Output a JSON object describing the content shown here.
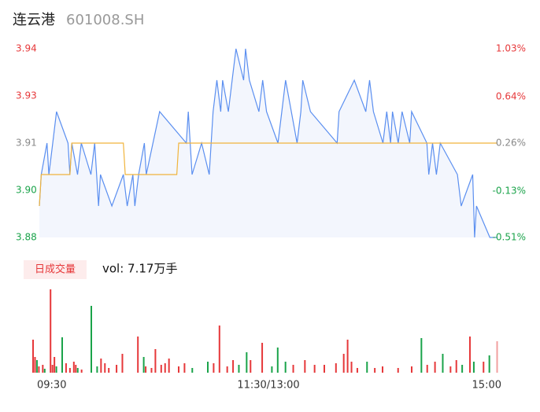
{
  "chart_data": [
    {
      "type": "line",
      "title": "连云港",
      "subtitle": "601008.SH",
      "xlim": [
        0,
        240
      ],
      "xticks": [
        {
          "value": 0,
          "label": "09:30"
        },
        {
          "value": 120,
          "label": "11:30/13:00"
        },
        {
          "value": 240,
          "label": "15:00"
        }
      ],
      "ylim": [
        3.88,
        3.94
      ],
      "yticks": [
        3.94,
        {
          "value": 3.925,
          "label": "3.93"
        },
        3.91,
        {
          "value": 3.895,
          "label": "3.90"
        },
        3.88
      ],
      "ytick_colors": [
        "#e6383a",
        "#e6383a",
        "#888888",
        "#1aa34a",
        "#1aa34a"
      ],
      "y2lim": [
        -0.51,
        1.03
      ],
      "y2ticks": [
        {
          "value": 1.03,
          "label": "1.03%"
        },
        {
          "value": 0.64,
          "label": "0.64%"
        },
        {
          "value": 0.26,
          "label": "0.26%"
        },
        {
          "value": -0.13,
          "label": "-0.13%"
        },
        {
          "value": -0.51,
          "label": "-0.51%"
        }
      ],
      "y2tick_colors": [
        "#e6383a",
        "#e6383a",
        "#888888",
        "#1aa34a",
        "#1aa34a"
      ],
      "series": [
        {
          "name": "price",
          "color": "#5b8ff0",
          "fill": "#f3f6fd",
          "x": [
            0,
            1,
            4,
            5,
            7,
            9,
            15,
            16,
            17,
            20,
            22,
            27,
            29,
            31,
            32,
            38,
            44,
            46,
            49,
            50,
            52,
            55,
            56,
            63,
            77,
            78,
            80,
            85,
            89,
            91,
            93,
            95,
            96,
            99,
            101,
            103,
            107,
            108,
            110,
            115,
            117,
            119,
            125,
            127,
            129,
            135,
            137,
            138,
            142,
            156,
            157,
            165,
            171,
            173,
            175,
            180,
            182,
            184,
            185,
            188,
            190,
            194,
            195,
            203,
            204,
            206,
            208,
            210,
            219,
            221,
            227,
            228,
            229,
            236,
            240
          ],
          "values": [
            3.89,
            3.9,
            3.91,
            3.9,
            3.91,
            3.92,
            3.91,
            3.9,
            3.91,
            3.9,
            3.91,
            3.9,
            3.91,
            3.89,
            3.9,
            3.89,
            3.9,
            3.89,
            3.9,
            3.89,
            3.9,
            3.91,
            3.9,
            3.92,
            3.91,
            3.92,
            3.9,
            3.91,
            3.9,
            3.92,
            3.93,
            3.92,
            3.93,
            3.92,
            3.93,
            3.94,
            3.93,
            3.94,
            3.93,
            3.92,
            3.93,
            3.92,
            3.91,
            3.92,
            3.93,
            3.91,
            3.92,
            3.93,
            3.92,
            3.91,
            3.92,
            3.93,
            3.92,
            3.93,
            3.92,
            3.91,
            3.92,
            3.91,
            3.92,
            3.91,
            3.92,
            3.91,
            3.92,
            3.91,
            3.9,
            3.91,
            3.9,
            3.91,
            3.9,
            3.89,
            3.9,
            3.88,
            3.89,
            3.88,
            3.88
          ]
        },
        {
          "name": "avg",
          "color": "#f0b43c",
          "x": [
            0,
            1,
            16,
            17,
            44,
            45,
            72,
            73,
            240
          ],
          "values": [
            3.89,
            3.9,
            3.9,
            3.91,
            3.91,
            3.9,
            3.9,
            3.91,
            3.91
          ]
        }
      ]
    },
    {
      "type": "bar",
      "legend_label": "日成交量",
      "summary": "vol: 7.17万手",
      "xlim": [
        0,
        240
      ],
      "ylim": [
        0,
        106
      ],
      "x": [
        0,
        1,
        2,
        3,
        5,
        6,
        9,
        10,
        11,
        12,
        15,
        17,
        19,
        21,
        22,
        23,
        25,
        30,
        33,
        35,
        37,
        39,
        43,
        46,
        54,
        57,
        58,
        61,
        63,
        66,
        68,
        70,
        75,
        78,
        82,
        90,
        93,
        96,
        100,
        103,
        106,
        110,
        112,
        118,
        123,
        126,
        130,
        134,
        140,
        145,
        150,
        156,
        160,
        162,
        164,
        167,
        172,
        176,
        180,
        188,
        195,
        200,
        203,
        207,
        211,
        215,
        218,
        221,
        225,
        227,
        232,
        235,
        239
      ],
      "values": [
        42,
        20,
        16,
        8,
        10,
        5,
        106,
        10,
        20,
        8,
        45,
        12,
        6,
        14,
        10,
        6,
        4,
        85,
        8,
        18,
        12,
        6,
        10,
        24,
        46,
        20,
        8,
        6,
        30,
        10,
        12,
        18,
        8,
        12,
        6,
        14,
        12,
        60,
        8,
        16,
        10,
        26,
        16,
        38,
        8,
        32,
        14,
        10,
        16,
        10,
        10,
        12,
        24,
        42,
        14,
        6,
        14,
        6,
        8,
        6,
        8,
        44,
        10,
        14,
        24,
        8,
        16,
        10,
        46,
        14,
        14,
        22,
        40
      ],
      "colors": [
        "#e6383a",
        "#e6383a",
        "#1aa34a",
        "#e6383a",
        "#e6383a",
        "#1aa34a",
        "#e6383a",
        "#e6383a",
        "#e6383a",
        "#1aa34a",
        "#1aa34a",
        "#e6383a",
        "#e6383a",
        "#e6383a",
        "#e6383a",
        "#1aa34a",
        "#e6383a",
        "#1aa34a",
        "#1aa34a",
        "#e6383a",
        "#e6383a",
        "#e6383a",
        "#e6383a",
        "#e6383a",
        "#e6383a",
        "#1aa34a",
        "#e6383a",
        "#e6383a",
        "#e6383a",
        "#e6383a",
        "#e6383a",
        "#e6383a",
        "#e6383a",
        "#e6383a",
        "#1aa34a",
        "#1aa34a",
        "#e6383a",
        "#e6383a",
        "#e6383a",
        "#e6383a",
        "#1aa34a",
        "#1aa34a",
        "#e6383a",
        "#e6383a",
        "#1aa34a",
        "#1aa34a",
        "#1aa34a",
        "#e6383a",
        "#e6383a",
        "#e6383a",
        "#e6383a",
        "#e6383a",
        "#e6383a",
        "#e6383a",
        "#e6383a",
        "#e6383a",
        "#1aa34a",
        "#e6383a",
        "#e6383a",
        "#e6383a",
        "#e6383a",
        "#1aa34a",
        "#e6383a",
        "#e6383a",
        "#1aa34a",
        "#e6383a",
        "#e6383a",
        "#1aa34a",
        "#e6383a",
        "#1aa34a",
        "#e6383a",
        "#1aa34a",
        "#f2a0a0"
      ]
    }
  ]
}
